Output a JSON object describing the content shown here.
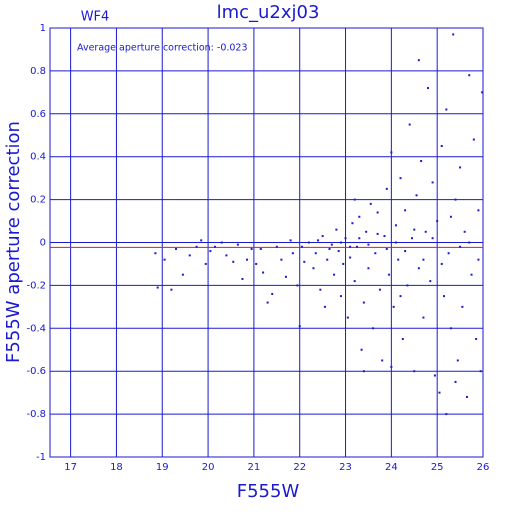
{
  "chart_data": {
    "type": "scatter",
    "title": "lmc_u2xj03",
    "subtitle": "WF4",
    "annotation": "Average aperture correction: -0.023",
    "x_label": "F555W",
    "y_label": "F555W aperture correction",
    "color": "#1a1ad0",
    "grid": true,
    "reference_line": {
      "value": -0.023,
      "color": "#cc2222"
    },
    "xlim": [
      16.55,
      26
    ],
    "ylim": [
      -1,
      1
    ],
    "xticks": [
      17,
      18,
      19,
      20,
      21,
      22,
      23,
      24,
      25,
      26
    ],
    "yticks": [
      -1,
      -0.8,
      -0.6,
      -0.4,
      -0.2,
      0,
      0.2,
      0.4,
      0.6,
      0.8,
      1
    ],
    "x": [
      18.85,
      18.9,
      19.05,
      19.2,
      19.3,
      19.45,
      19.6,
      19.75,
      19.85,
      19.95,
      20.05,
      20.15,
      20.3,
      20.4,
      20.55,
      20.65,
      20.75,
      20.85,
      20.95,
      21.05,
      21.15,
      21.2,
      21.3,
      21.4,
      21.5,
      21.6,
      21.7,
      21.8,
      21.85,
      21.95,
      22.0,
      22.05,
      22.1,
      22.2,
      22.3,
      22.35,
      22.45,
      22.5,
      22.55,
      22.6,
      22.7,
      22.75,
      22.8,
      22.85,
      22.9,
      22.95,
      23.0,
      23.05,
      23.1,
      23.15,
      23.2,
      23.25,
      23.3,
      23.35,
      23.4,
      23.45,
      23.5,
      23.55,
      23.6,
      23.65,
      23.7,
      23.75,
      23.8,
      23.85,
      23.9,
      23.95,
      24.0,
      24.05,
      24.1,
      24.15,
      24.2,
      24.25,
      24.3,
      24.35,
      24.4,
      24.45,
      24.5,
      24.55,
      24.6,
      24.65,
      24.7,
      24.75,
      24.8,
      24.85,
      24.9,
      24.95,
      25.0,
      25.05,
      25.1,
      25.15,
      25.2,
      25.25,
      25.3,
      25.35,
      25.4,
      25.45,
      25.5,
      25.55,
      25.6,
      25.65,
      25.7,
      25.75,
      25.8,
      25.85,
      25.9,
      25.95,
      25.98,
      22.4,
      22.65,
      22.9,
      23.1,
      23.3,
      23.5,
      23.7,
      23.9,
      24.1,
      24.3,
      24.5,
      24.7,
      24.9,
      25.1,
      25.3,
      25.5,
      25.7,
      25.9,
      24.6,
      25.2,
      23.4,
      24.0,
      23.2,
      24.2,
      25.4
    ],
    "values": [
      -0.05,
      -0.21,
      -0.08,
      -0.22,
      -0.03,
      -0.15,
      -0.06,
      -0.02,
      0.01,
      -0.1,
      -0.04,
      -0.02,
      0.0,
      -0.06,
      -0.09,
      -0.01,
      -0.17,
      -0.08,
      -0.03,
      -0.1,
      -0.03,
      -0.14,
      -0.28,
      -0.24,
      -0.02,
      -0.08,
      -0.16,
      0.01,
      -0.05,
      -0.2,
      -0.39,
      -0.02,
      -0.09,
      0.0,
      -0.12,
      -0.05,
      -0.22,
      0.03,
      -0.3,
      -0.08,
      -0.01,
      -0.15,
      0.06,
      -0.04,
      -0.25,
      -0.1,
      0.02,
      -0.35,
      -0.07,
      0.09,
      -0.18,
      -0.02,
      0.12,
      -0.5,
      -0.28,
      0.05,
      -0.12,
      0.18,
      -0.4,
      -0.05,
      0.14,
      -0.22,
      -0.55,
      0.03,
      0.25,
      -0.15,
      0.42,
      -0.3,
      0.08,
      -0.08,
      0.3,
      -0.45,
      0.15,
      -0.2,
      0.55,
      0.02,
      -0.6,
      0.22,
      -0.12,
      0.38,
      -0.35,
      0.05,
      0.72,
      -0.18,
      0.28,
      -0.62,
      0.1,
      -0.7,
      0.45,
      -0.25,
      0.62,
      -0.05,
      -0.4,
      0.97,
      0.2,
      -0.55,
      0.35,
      -0.3,
      0.05,
      -0.72,
      0.78,
      -0.15,
      0.48,
      -0.45,
      0.15,
      -0.6,
      0.7,
      0.01,
      -0.03,
      0.0,
      -0.02,
      0.02,
      -0.01,
      0.04,
      -0.03,
      0.0,
      -0.04,
      0.06,
      -0.08,
      0.02,
      -0.1,
      0.12,
      -0.02,
      0.0,
      -0.08,
      0.85,
      -0.8,
      -0.6,
      -0.58,
      0.2,
      -0.25,
      -0.65
    ]
  }
}
